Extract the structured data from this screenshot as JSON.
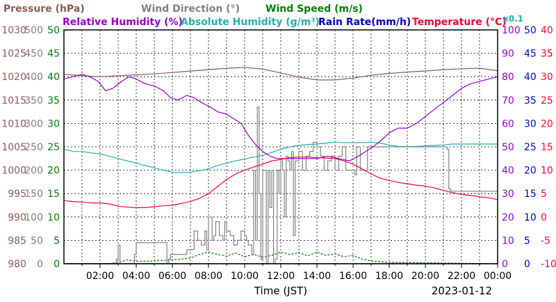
{
  "chart_data": {
    "type": "line",
    "date": "2023-01-12",
    "xlabel": "Time (JST)",
    "x_ticks": [
      "02:00",
      "04:00",
      "06:00",
      "08:00",
      "10:00",
      "12:00",
      "14:00",
      "16:00",
      "18:00",
      "20:00",
      "22:00",
      "00:00"
    ],
    "x_range_hours": [
      0,
      24
    ],
    "grid": true,
    "legend": {
      "row1": [
        {
          "label": "Pressure (hPa)",
          "color": "#8b5a5a"
        },
        {
          "label": "Wind Direction (°)",
          "color": "#808080"
        },
        {
          "label": "Wind Speed (m/s)",
          "color": "#008000"
        }
      ],
      "row2": [
        {
          "label": "Relative Humidity (%)",
          "color": "#9400d3"
        },
        {
          "label": "Absolute Humidity (g/m³)",
          "color": "#20b2aa"
        },
        {
          "label": "Rain Rate(mm/h)",
          "color": "#0000cd"
        },
        {
          "label": "Temperature (°C)",
          "color": "#ff0033"
        }
      ],
      "rain_scale_note": "x0.1"
    },
    "axes": {
      "pressure": {
        "color": "#8b5a5a",
        "range": [
          980,
          1030
        ],
        "ticks": [
          "980",
          "985",
          "990",
          "995",
          "1000",
          "1005",
          "1010",
          "1015",
          "1020",
          "1025",
          "1030"
        ]
      },
      "wind_direction": {
        "color": "#808080",
        "range": [
          0,
          500
        ],
        "ticks": [
          "0",
          "50",
          "100",
          "150",
          "200",
          "250",
          "300",
          "350",
          "400",
          "450",
          "500"
        ]
      },
      "wind_speed": {
        "color": "#008000",
        "range": [
          0,
          50
        ],
        "ticks": [
          "0",
          "5",
          "10",
          "15",
          "20",
          "25",
          "30",
          "35",
          "40",
          "45",
          "50"
        ]
      },
      "humidity": {
        "color": "#9400d3",
        "range": [
          0,
          100
        ],
        "ticks": [
          "0",
          "10",
          "20",
          "30",
          "40",
          "50",
          "60",
          "70",
          "80",
          "90",
          "100"
        ]
      },
      "rain": {
        "color": "#0000cd",
        "range": [
          0,
          50
        ],
        "ticks": [
          "0",
          "5",
          "10",
          "15",
          "20",
          "25",
          "30",
          "35",
          "40",
          "45",
          "50"
        ]
      },
      "temperature": {
        "color": "#ff0033",
        "range": [
          -10,
          40
        ],
        "ticks": [
          "-10",
          "-5",
          "0",
          "5",
          "10",
          "15",
          "20",
          "25",
          "30",
          "35",
          "40"
        ]
      }
    },
    "series": [
      {
        "name": "Pressure (hPa)",
        "axis": "pressure",
        "color": "#8b5a5a",
        "x": [
          0,
          1,
          2,
          3,
          4,
          5,
          6,
          7,
          8,
          9,
          10,
          11,
          12,
          13,
          14,
          15,
          16,
          17,
          18,
          19,
          20,
          21,
          22,
          23,
          24
        ],
        "y": [
          1020.5,
          1020.2,
          1020.0,
          1020.2,
          1020.4,
          1020.6,
          1020.9,
          1021.2,
          1021.5,
          1021.8,
          1022.0,
          1021.6,
          1020.8,
          1019.9,
          1019.3,
          1019.3,
          1019.7,
          1020.3,
          1020.7,
          1021.0,
          1021.2,
          1021.5,
          1021.7,
          1021.8,
          1021.3
        ]
      },
      {
        "name": "Relative Humidity (%)",
        "axis": "humidity",
        "color": "#9400d3",
        "x": [
          0,
          0.5,
          1,
          1.4,
          1.9,
          2.3,
          2.7,
          3.2,
          3.6,
          4.0,
          4.5,
          5.0,
          5.5,
          5.9,
          6.3,
          6.8,
          7.2,
          7.6,
          8.1,
          8.5,
          9.0,
          9.4,
          9.8,
          10.2,
          10.6,
          11.0,
          11.4,
          11.8,
          12.2,
          12.7,
          13.3,
          14.0,
          14.6,
          15.2,
          15.8,
          16.3,
          16.7,
          17.1,
          17.6,
          18.0,
          18.5,
          19.0,
          19.5,
          20.0,
          20.5,
          21.0,
          21.5,
          22.0,
          22.5,
          23.0,
          23.5,
          24
        ],
        "y": [
          79,
          80,
          81,
          80,
          78,
          74,
          75,
          78,
          80,
          79,
          77,
          76,
          74,
          71,
          70,
          72,
          71,
          69,
          67,
          65,
          64,
          62,
          60,
          55,
          51,
          48,
          46,
          45,
          45,
          45,
          45,
          45,
          46,
          45,
          44,
          46,
          48,
          50,
          53,
          56,
          58,
          58,
          60,
          63,
          66,
          69,
          72,
          75,
          77,
          78,
          79,
          80
        ]
      },
      {
        "name": "Absolute Humidity (g/m³)",
        "axis": "rain",
        "color": "#20b2aa",
        "x": [
          0,
          0.5,
          1,
          1.5,
          2,
          2.5,
          3,
          3.5,
          4,
          4.5,
          5,
          5.5,
          6,
          6.5,
          7,
          7.5,
          8,
          8.5,
          9,
          9.5,
          10,
          10.5,
          11,
          11.5,
          12,
          12.5,
          13,
          13.5,
          14,
          14.5,
          15,
          15.5,
          16,
          16.5,
          17,
          17.5,
          18,
          18.5,
          19,
          19.5,
          20,
          20.5,
          21,
          21.5,
          22,
          22.5,
          23,
          23.5,
          24
        ],
        "y": [
          24.5,
          24.0,
          24.0,
          23.7,
          23.5,
          23.0,
          22.5,
          22.0,
          21.5,
          21.0,
          20.5,
          20.0,
          19.6,
          19.5,
          19.6,
          19.9,
          20.3,
          21.0,
          21.5,
          22.0,
          22.4,
          22.8,
          23.2,
          23.8,
          24.5,
          25.0,
          25.3,
          25.5,
          25.6,
          25.8,
          26.0,
          25.9,
          25.9,
          25.9,
          26.0,
          25.8,
          25.4,
          25.1,
          25.0,
          25.1,
          25.2,
          25.3,
          25.4,
          25.6,
          25.6,
          25.6,
          25.6,
          25.6,
          25.6
        ]
      },
      {
        "name": "Temperature (°C)",
        "axis": "temperature",
        "color": "#ff0033",
        "x": [
          0,
          0.5,
          1,
          1.5,
          2,
          2.5,
          3,
          3.5,
          4,
          4.5,
          5,
          5.5,
          6,
          6.5,
          7,
          7.5,
          8,
          8.5,
          9,
          9.5,
          10,
          10.5,
          11,
          11.5,
          12,
          12.5,
          13,
          13.5,
          14,
          14.5,
          15,
          15.5,
          16,
          16.5,
          17,
          17.5,
          18,
          18.5,
          19,
          19.5,
          20,
          20.5,
          21,
          21.5,
          22,
          22.5,
          23,
          23.5,
          24
        ],
        "y": [
          3.5,
          3.3,
          3.2,
          3.0,
          3.0,
          2.8,
          2.3,
          2.1,
          2.0,
          2.0,
          2.2,
          2.4,
          2.5,
          2.9,
          3.3,
          4.0,
          5.0,
          6.5,
          8.0,
          9.2,
          10.0,
          10.7,
          11.3,
          12.0,
          12.3,
          12.7,
          12.8,
          12.8,
          12.7,
          12.6,
          12.5,
          12.0,
          11.3,
          10.3,
          9.2,
          8.3,
          7.8,
          7.4,
          7.1,
          6.8,
          6.6,
          6.2,
          5.7,
          5.2,
          4.8,
          4.6,
          4.3,
          4.1,
          3.7
        ]
      },
      {
        "name": "Wind Direction (°)",
        "axis": "wind_direction",
        "color": "#808080",
        "x": [
          0,
          2.6,
          2.9,
          3.0,
          3.1,
          3.5,
          3.9,
          4.0,
          4.1,
          5.6,
          5.7,
          5.8,
          5.9,
          6.0,
          6.7,
          6.8,
          7.1,
          7.2,
          7.4,
          7.6,
          7.8,
          7.9,
          8.0,
          8.2,
          8.3,
          8.4,
          8.6,
          8.8,
          8.9,
          9.0,
          9.2,
          9.4,
          9.6,
          9.8,
          10.0,
          10.1,
          10.2,
          10.4,
          10.5,
          10.6,
          10.7,
          10.8,
          10.9,
          11.0,
          11.2,
          11.3,
          11.4,
          11.5,
          11.6,
          11.7,
          11.8,
          11.9,
          12.0,
          12.1,
          12.2,
          12.3,
          12.4,
          12.5,
          12.6,
          12.7,
          12.8,
          13.0,
          13.2,
          13.4,
          13.6,
          13.8,
          14.0,
          14.2,
          14.4,
          14.6,
          14.8,
          15.0,
          15.2,
          15.4,
          15.6,
          15.8,
          16.0,
          16.1,
          16.2,
          16.3,
          16.4,
          16.8,
          17.0,
          18.0,
          19.0,
          20.0,
          20.5,
          21.0,
          21.2,
          21.3,
          21.4,
          22.0,
          23.0,
          24
        ],
        "y": [
          0,
          0,
          10,
          40,
          0,
          0,
          20,
          45,
          45,
          45,
          0,
          10,
          20,
          20,
          20,
          30,
          30,
          70,
          50,
          40,
          70,
          30,
          100,
          50,
          60,
          90,
          60,
          50,
          90,
          70,
          60,
          40,
          50,
          70,
          60,
          50,
          40,
          20,
          200,
          50,
          335,
          150,
          10,
          200,
          0,
          200,
          120,
          200,
          0,
          10,
          200,
          150,
          220,
          200,
          100,
          230,
          220,
          200,
          240,
          60,
          220,
          240,
          200,
          230,
          240,
          260,
          250,
          230,
          200,
          220,
          230,
          200,
          230,
          250,
          200,
          200,
          200,
          190,
          250,
          250,
          200,
          250,
          250,
          250,
          250,
          250,
          250,
          250,
          245,
          160,
          155,
          155,
          155,
          155
        ]
      },
      {
        "name": "Wind Speed (m/s)",
        "axis": "wind_speed",
        "color": "#008000",
        "x": [
          0,
          2.5,
          3.0,
          3.5,
          4.0,
          5.0,
          6.0,
          7.0,
          7.5,
          8.0,
          8.5,
          9.0,
          9.5,
          10.0,
          10.5,
          11.0,
          11.5,
          12.0,
          12.5,
          13.0,
          13.5,
          14.0,
          14.5,
          15.0,
          15.5,
          16.0,
          16.5,
          17.0,
          18.0,
          20.0,
          22.0,
          24
        ],
        "y": [
          0,
          0,
          0.3,
          0.8,
          0.5,
          0.6,
          0.8,
          1.2,
          2.0,
          2.5,
          2.0,
          1.6,
          2.3,
          1.5,
          2.0,
          1.4,
          1.8,
          2.5,
          2.0,
          2.4,
          1.7,
          2.5,
          1.8,
          2.1,
          1.5,
          1.8,
          1.0,
          0.6,
          0.3,
          0.2,
          0.1,
          0
        ]
      },
      {
        "name": "Rain Rate(mm/h)",
        "axis": "rain",
        "color": "#0000cd",
        "x": [
          0,
          24
        ],
        "y": [
          0,
          0
        ]
      }
    ]
  }
}
